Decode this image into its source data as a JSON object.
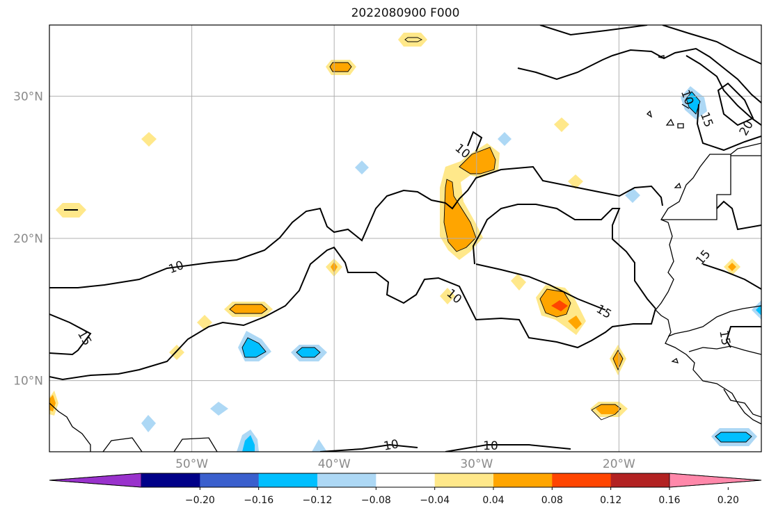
{
  "title": "2022080900 F000",
  "map": {
    "lon_ticks": [
      {
        "lon": -50,
        "label": "50°W"
      },
      {
        "lon": -40,
        "label": "40°W"
      },
      {
        "lon": -30,
        "label": "30°W"
      },
      {
        "lon": -20,
        "label": "20°W"
      }
    ],
    "lat_ticks": [
      {
        "lat": 30,
        "label": "30°N"
      },
      {
        "lat": 20,
        "label": "20°N"
      },
      {
        "lat": 10,
        "label": "10°N"
      }
    ],
    "lon_range": [
      -60,
      -10
    ],
    "lat_range": [
      5,
      35
    ],
    "contour_line_labels": [
      "10",
      "10",
      "10",
      "10",
      "10",
      "10",
      "15",
      "15",
      "15",
      "15",
      "15",
      "20"
    ]
  },
  "colorbar": {
    "colors": [
      "#9932cc",
      "#000088",
      "#3a5fcd",
      "#00bfff",
      "#add8f5",
      "#ffffff",
      "#ffe88a",
      "#ffa500",
      "#ff4500",
      "#b22222",
      "#ff88aa"
    ],
    "tick_labels": [
      "−0.20",
      "−0.16",
      "−0.12",
      "−0.08",
      "−0.04",
      "0.04",
      "0.08",
      "0.12",
      "0.16",
      "0.20"
    ],
    "extend": "both"
  },
  "colors": {
    "grid": "#b0b0b0",
    "contour": "#000000",
    "coast": "#000000",
    "pos_light": "#ffe88a",
    "pos_mid": "#ffa500",
    "pos_strong": "#ff4500",
    "neg_light": "#add8f5",
    "neg_mid": "#00bfff"
  }
}
